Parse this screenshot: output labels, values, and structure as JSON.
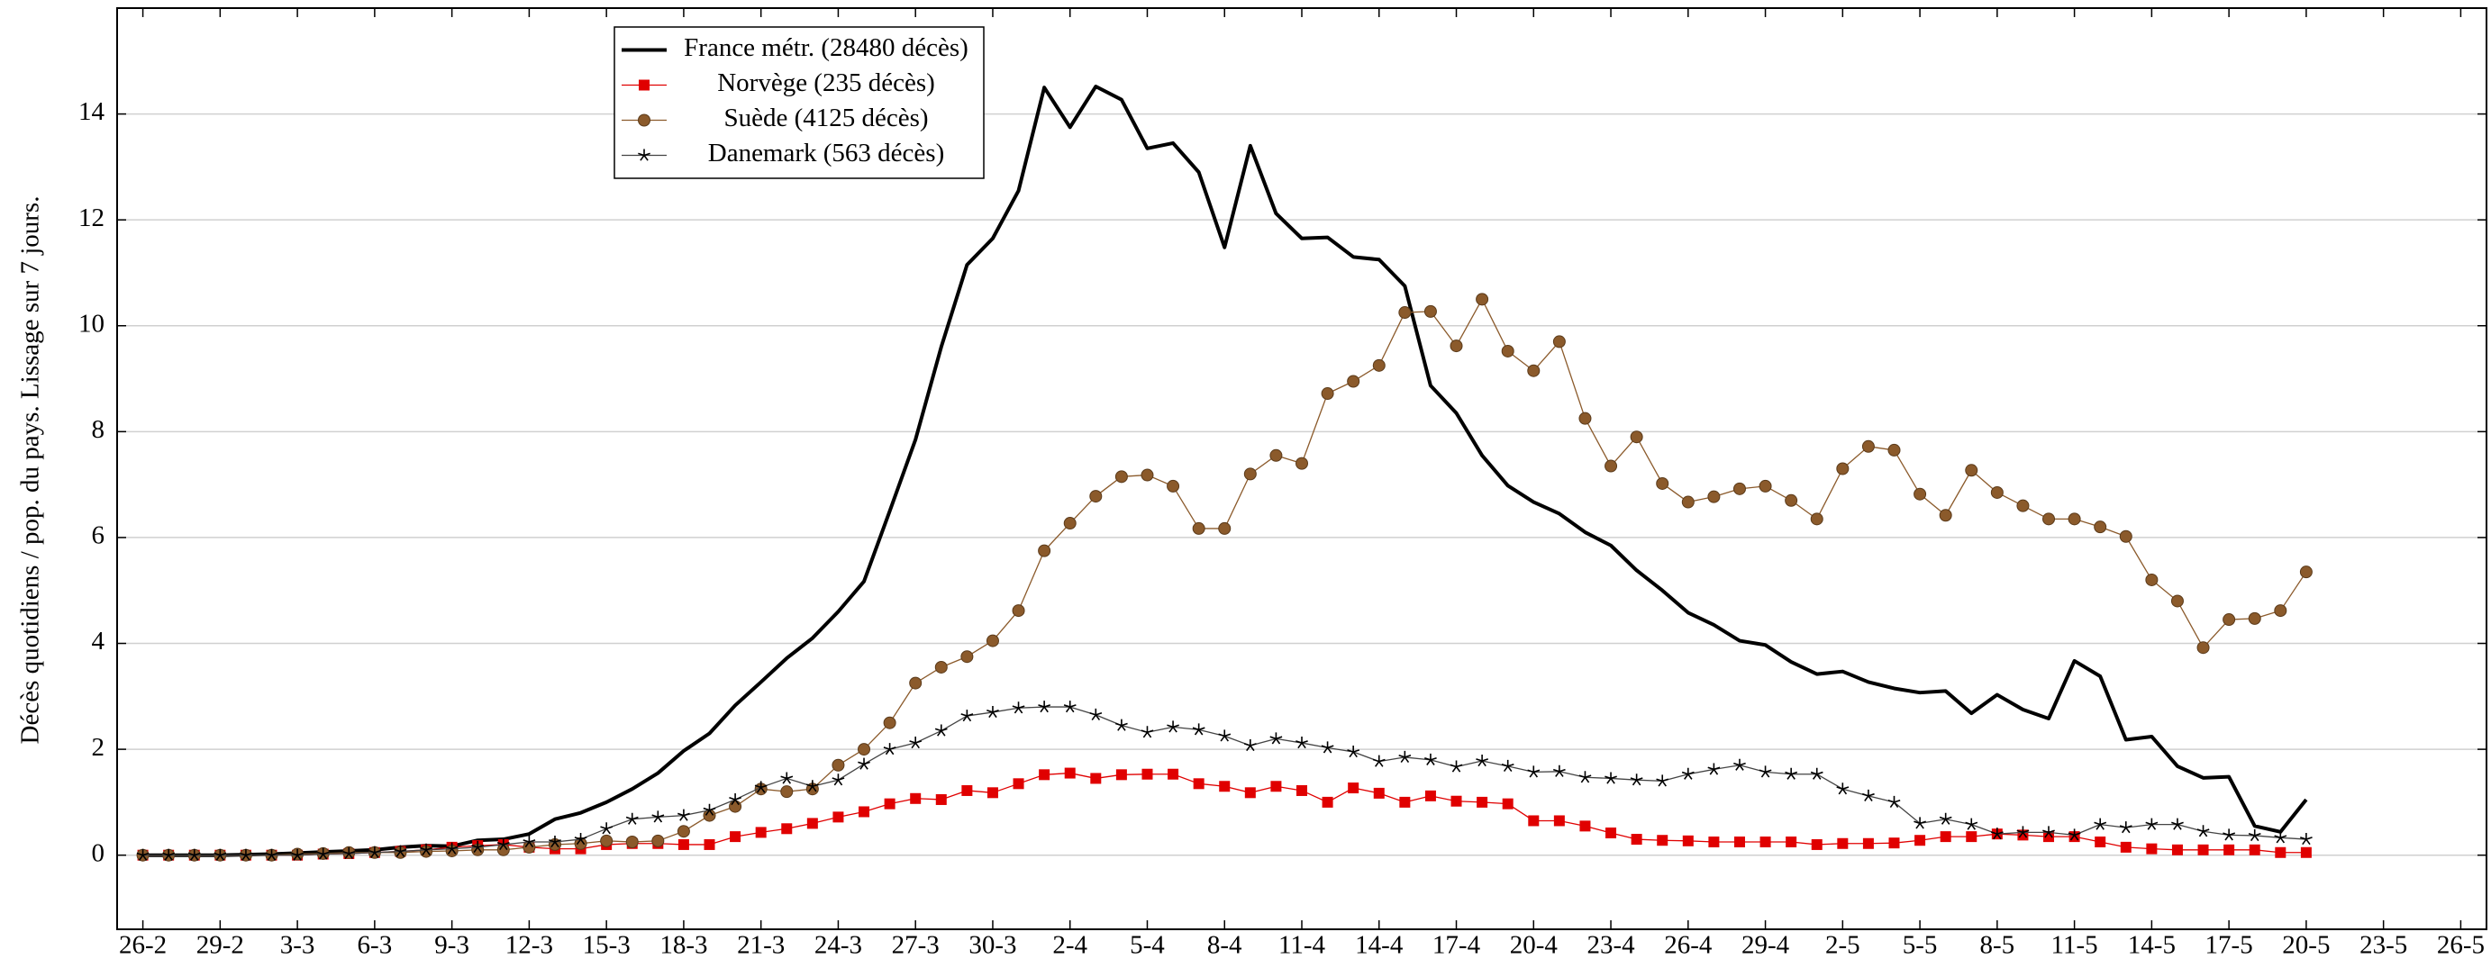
{
  "chart_data": {
    "type": "line",
    "ylabel": "Décès quotidiens / pop. du pays. Lissage sur 7 jours.",
    "categories": [
      "26-2",
      null,
      null,
      "29-2",
      null,
      null,
      "3-3",
      null,
      null,
      "6-3",
      null,
      null,
      "9-3",
      null,
      null,
      "12-3",
      null,
      null,
      "15-3",
      null,
      null,
      "18-3",
      null,
      null,
      "21-3",
      null,
      null,
      "24-3",
      null,
      null,
      "27-3",
      null,
      null,
      "30-3",
      null,
      null,
      "2-4",
      null,
      null,
      "5-4",
      null,
      null,
      "8-4",
      null,
      null,
      "11-4",
      null,
      null,
      "14-4",
      null,
      null,
      "17-4",
      null,
      null,
      "20-4",
      null,
      null,
      "23-4",
      null,
      null,
      "26-4",
      null,
      null,
      "29-4",
      null,
      null,
      "2-5",
      null,
      null,
      "5-5",
      null,
      null,
      "8-5",
      null,
      null,
      "11-5",
      null,
      null,
      "14-5",
      null,
      null,
      "17-5",
      null,
      null,
      "20-5",
      null,
      null,
      "23-5",
      null,
      null,
      "26-5"
    ],
    "series": [
      {
        "name": "France métr. (28480 décès)",
        "color": "#000000",
        "marker": "none",
        "values": [
          0,
          0,
          0,
          0,
          0.01,
          0.02,
          0.04,
          0.06,
          0.08,
          0.1,
          0.15,
          0.18,
          0.17,
          0.28,
          0.3,
          0.4,
          0.68,
          0.8,
          1.0,
          1.25,
          1.55,
          1.97,
          2.3,
          2.83,
          3.27,
          3.72,
          4.1,
          4.6,
          5.17,
          6.5,
          7.85,
          9.6,
          11.15,
          11.65,
          12.55,
          14.5,
          13.75,
          14.52,
          14.27,
          13.35,
          13.45,
          12.9,
          11.48,
          13.4,
          12.12,
          11.65,
          11.67,
          11.3,
          11.25,
          10.75,
          8.87,
          8.35,
          7.55,
          6.98,
          6.67,
          6.45,
          6.1,
          5.85,
          5.38,
          5.0,
          4.58,
          4.35,
          4.05,
          3.97,
          3.65,
          3.42,
          3.47,
          3.27,
          3.15,
          3.07,
          3.1,
          2.68,
          3.03,
          2.75,
          2.58,
          3.67,
          3.38,
          2.18,
          2.24,
          1.68,
          1.46,
          1.48,
          0.55,
          0.44,
          1.05,
          null,
          null,
          null,
          null,
          null,
          null
        ]
      },
      {
        "name": "Norvège (235 décès)",
        "color": "#e00000",
        "marker": "square",
        "values": [
          0,
          0,
          0,
          0,
          0,
          0,
          0,
          0.02,
          0.03,
          0.05,
          0.07,
          0.1,
          0.15,
          0.18,
          0.2,
          0.15,
          0.12,
          0.12,
          0.2,
          0.22,
          0.22,
          0.2,
          0.2,
          0.35,
          0.43,
          0.5,
          0.6,
          0.72,
          0.82,
          0.97,
          1.07,
          1.05,
          1.22,
          1.18,
          1.35,
          1.52,
          1.55,
          1.45,
          1.52,
          1.53,
          1.53,
          1.35,
          1.3,
          1.18,
          1.3,
          1.22,
          1.0,
          1.27,
          1.17,
          1.0,
          1.12,
          1.02,
          1.0,
          0.97,
          0.65,
          0.65,
          0.55,
          0.42,
          0.3,
          0.28,
          0.27,
          0.25,
          0.25,
          0.25,
          0.25,
          0.2,
          0.22,
          0.22,
          0.23,
          0.28,
          0.35,
          0.35,
          0.4,
          0.38,
          0.35,
          0.35,
          0.25,
          0.15,
          0.12,
          0.1,
          0.1,
          0.1,
          0.1,
          0.05,
          0.05,
          null,
          null,
          null,
          null,
          null,
          null
        ]
      },
      {
        "name": "Suède (4125 décès)",
        "color": "#8b5a2b",
        "marker": "circle",
        "values": [
          0,
          0,
          0,
          0,
          0,
          0,
          0.02,
          0.03,
          0.05,
          0.05,
          0.05,
          0.07,
          0.08,
          0.1,
          0.1,
          0.15,
          0.2,
          0.22,
          0.27,
          0.25,
          0.27,
          0.45,
          0.75,
          0.92,
          1.25,
          1.2,
          1.25,
          1.7,
          2.0,
          2.5,
          3.25,
          3.55,
          3.75,
          4.05,
          4.62,
          5.75,
          6.27,
          6.78,
          7.15,
          7.18,
          6.97,
          6.17,
          6.17,
          7.2,
          7.55,
          7.4,
          8.72,
          8.95,
          9.25,
          10.25,
          10.27,
          9.62,
          10.5,
          9.52,
          9.15,
          9.7,
          8.25,
          7.35,
          7.9,
          7.02,
          6.67,
          6.77,
          6.92,
          6.97,
          6.7,
          6.35,
          7.3,
          7.72,
          7.65,
          6.82,
          6.42,
          7.27,
          6.85,
          6.6,
          6.35,
          6.35,
          6.2,
          6.02,
          5.2,
          4.8,
          3.92,
          4.45,
          4.47,
          4.62,
          5.35,
          null,
          null,
          null,
          null,
          null,
          null
        ]
      },
      {
        "name": "Danemark (563 décès)",
        "color": "#444444",
        "marker": "star",
        "values": [
          0,
          0,
          0,
          0,
          0,
          0,
          0,
          0.02,
          0.03,
          0.05,
          0.07,
          0.1,
          0.12,
          0.15,
          0.2,
          0.25,
          0.25,
          0.3,
          0.5,
          0.68,
          0.72,
          0.75,
          0.85,
          1.05,
          1.28,
          1.45,
          1.3,
          1.42,
          1.72,
          2.0,
          2.12,
          2.35,
          2.63,
          2.7,
          2.78,
          2.8,
          2.8,
          2.65,
          2.45,
          2.32,
          2.42,
          2.37,
          2.25,
          2.07,
          2.2,
          2.12,
          2.03,
          1.95,
          1.77,
          1.85,
          1.8,
          1.67,
          1.78,
          1.68,
          1.57,
          1.58,
          1.47,
          1.45,
          1.42,
          1.4,
          1.53,
          1.62,
          1.7,
          1.57,
          1.53,
          1.53,
          1.25,
          1.12,
          1.0,
          0.6,
          0.68,
          0.58,
          0.4,
          0.43,
          0.43,
          0.38,
          0.58,
          0.52,
          0.58,
          0.58,
          0.45,
          0.38,
          0.37,
          0.33,
          0.3,
          null,
          null,
          null,
          null,
          null,
          null
        ]
      }
    ],
    "ylim": [
      -1.4,
      16
    ],
    "yticks": [
      0,
      2,
      4,
      6,
      8,
      10,
      12,
      14
    ],
    "grid": true,
    "legend_loc": "upper left"
  }
}
